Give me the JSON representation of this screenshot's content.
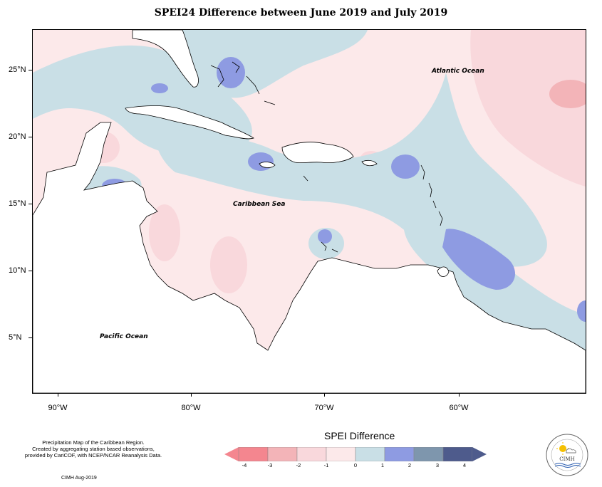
{
  "title": "SPEI24 Difference between June 2019 and July 2019",
  "ocean_labels": {
    "atlantic": "Atlantic Ocean",
    "caribbean": "Caribbean Sea",
    "pacific": "Pacific Ocean"
  },
  "x_ticks": [
    "90°W",
    "80°W",
    "70°W",
    "60°W"
  ],
  "y_ticks": [
    "25°N",
    "20°N",
    "15°N",
    "10°N",
    "5°N"
  ],
  "legend": {
    "title": "SPEI Difference",
    "labels": [
      "-4",
      "-3",
      "-2",
      "-1",
      "0",
      "1",
      "2",
      "3",
      "4"
    ],
    "colors": [
      "#f4868f",
      "#f3b4b8",
      "#f9d8dc",
      "#fce9ea",
      "#c9dfe6",
      "#8e9be2",
      "#7e96ad",
      "#4e5b8c"
    ]
  },
  "credits": {
    "line1": "Precipitation Map of the Caribbean Region.",
    "line2": "Created by aggregating station based observations,",
    "line3": "provided by CariCOF, with NCEP/NCAR Reanalysis Data.",
    "date": "CIMH Aug-2019"
  },
  "logo": {
    "text": "CIMH",
    "icon": "cimh-sun-cloud-logo-icon"
  }
}
